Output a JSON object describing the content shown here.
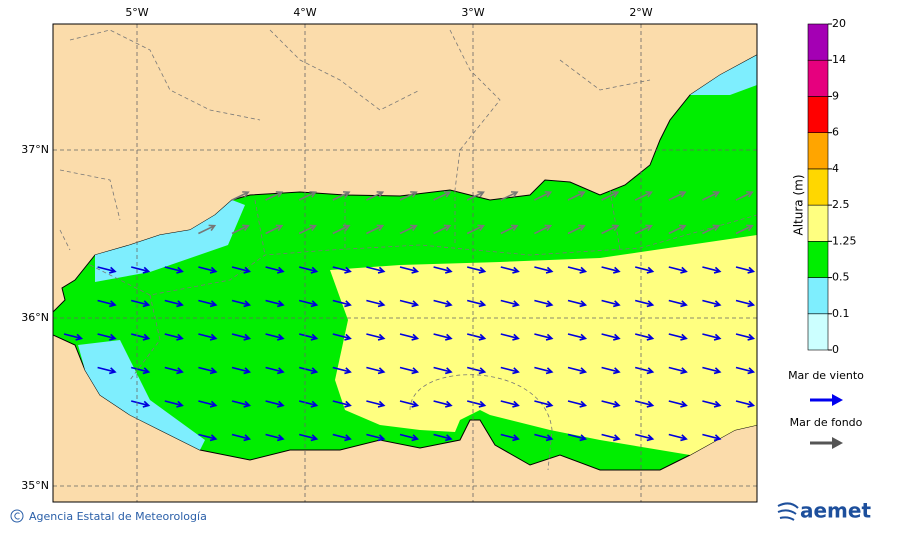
{
  "map": {
    "lon_ticks": [
      "5°W",
      "4°W",
      "3°W",
      "2°W"
    ],
    "lat_ticks": [
      "37°N",
      "36°N",
      "35°N"
    ]
  },
  "legend": {
    "title": "Altura (m)",
    "levels": [
      0,
      0.1,
      0.5,
      1.25,
      2.5,
      4,
      6,
      9,
      14,
      20
    ],
    "colors": [
      "#ccffff",
      "#7eeefe",
      "#00ee00",
      "#ffff80",
      "#ffd700",
      "#ffa500",
      "#ff0000",
      "#e6007e",
      "#a400b4"
    ],
    "wind_sea": "Mar de viento",
    "swell": "Mar de fondo"
  },
  "footer": {
    "credit": "Agencia Estatal de Meteorología",
    "logo": "aemet"
  }
}
